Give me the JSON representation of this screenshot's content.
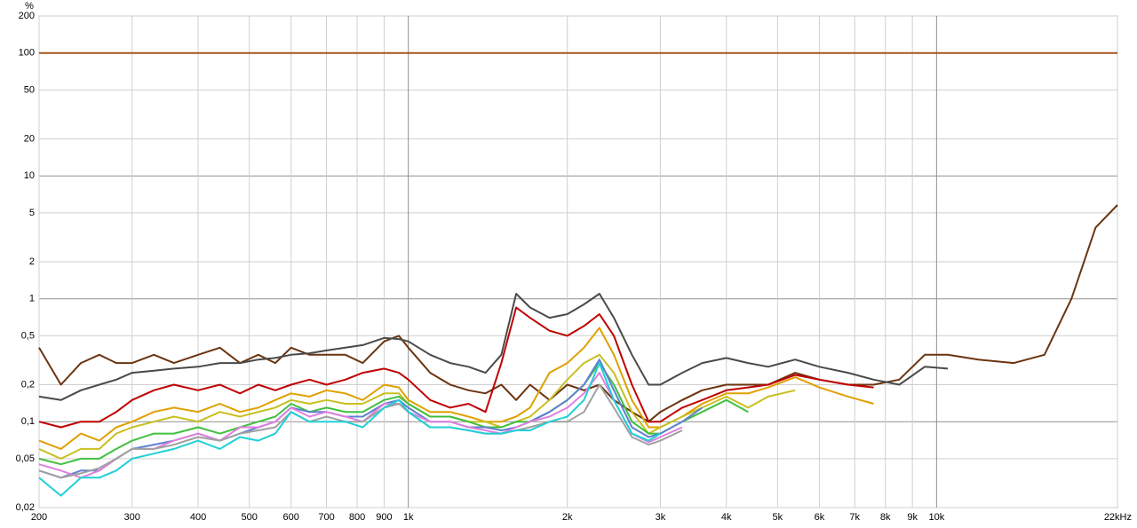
{
  "chart_data": {
    "type": "line",
    "ylabel": "%",
    "xscale": "log",
    "yscale": "log",
    "grid": true,
    "xlim": [
      200,
      22000
    ],
    "ylim": [
      0.02,
      200
    ],
    "xticks": [
      200,
      300,
      400,
      500,
      600,
      700,
      800,
      900,
      {
        "value": 1000,
        "label": "1k"
      },
      {
        "value": 2000,
        "label": "2k"
      },
      {
        "value": 3000,
        "label": "3k"
      },
      {
        "value": 4000,
        "label": "4k"
      },
      {
        "value": 5000,
        "label": "5k"
      },
      {
        "value": 6000,
        "label": "6k"
      },
      {
        "value": 7000,
        "label": "7k"
      },
      {
        "value": 8000,
        "label": "8k"
      },
      {
        "value": 9000,
        "label": "9k"
      },
      {
        "value": 10000,
        "label": "10k"
      },
      {
        "value": 22000,
        "label": "22kHz"
      }
    ],
    "yticks": [
      {
        "value": 0.02,
        "label": "0,02"
      },
      {
        "value": 0.05,
        "label": "0,05"
      },
      {
        "value": 0.1,
        "label": "0,1"
      },
      {
        "value": 0.2,
        "label": "0,2"
      },
      {
        "value": 0.5,
        "label": "0,5"
      },
      1,
      2,
      5,
      10,
      20,
      50,
      100,
      200
    ],
    "x": [
      200,
      220,
      240,
      260,
      280,
      300,
      330,
      360,
      400,
      440,
      480,
      520,
      560,
      600,
      650,
      700,
      760,
      820,
      900,
      960,
      1000,
      1100,
      1200,
      1300,
      1400,
      1500,
      1600,
      1700,
      1850,
      2000,
      2150,
      2300,
      2450,
      2650,
      2850,
      3000,
      3300,
      3600,
      4000,
      4400,
      4800,
      5400,
      6000,
      6800,
      7600,
      8500,
      9500,
      10500,
      12000,
      14000,
      16000,
      18000,
      20000,
      22000
    ],
    "series": [
      {
        "color": "#a5561e",
        "values": [
          100,
          100,
          100,
          100,
          100,
          100,
          100,
          100,
          100,
          100,
          100,
          100,
          100,
          100,
          100,
          100,
          100,
          100,
          100,
          100,
          100,
          100,
          100,
          100,
          100,
          100,
          100,
          100,
          100,
          100,
          100,
          100,
          100,
          100,
          100,
          100,
          100,
          100,
          100,
          100,
          100,
          100,
          100,
          100,
          100,
          100,
          100,
          100,
          100,
          100,
          100,
          100,
          100,
          100
        ]
      },
      {
        "color": "#6b3410",
        "values": [
          0.4,
          0.2,
          0.3,
          0.35,
          0.3,
          0.3,
          0.35,
          0.3,
          0.35,
          0.4,
          0.3,
          0.35,
          0.3,
          0.4,
          0.35,
          0.35,
          0.35,
          0.3,
          0.45,
          0.5,
          0.4,
          0.25,
          0.2,
          0.18,
          0.17,
          0.2,
          0.15,
          0.2,
          0.15,
          0.2,
          0.18,
          0.2,
          0.15,
          0.12,
          0.1,
          0.12,
          0.15,
          0.18,
          0.2,
          0.2,
          0.2,
          0.25,
          0.22,
          0.2,
          0.2,
          0.22,
          0.35,
          0.35,
          0.32,
          0.3,
          0.35,
          1.0,
          3.8,
          5.8
        ]
      },
      {
        "color": "#4a4a4a",
        "values": [
          0.16,
          0.15,
          0.18,
          0.2,
          0.22,
          0.25,
          0.26,
          0.27,
          0.28,
          0.3,
          0.3,
          0.32,
          0.33,
          0.35,
          0.36,
          0.38,
          0.4,
          0.42,
          0.48,
          0.47,
          0.45,
          0.35,
          0.3,
          0.28,
          0.25,
          0.35,
          1.1,
          0.85,
          0.7,
          0.75,
          0.9,
          1.1,
          0.7,
          0.35,
          0.2,
          0.2,
          0.25,
          0.3,
          0.33,
          0.3,
          0.28,
          0.32,
          0.28,
          0.25,
          0.22,
          0.2,
          0.28,
          0.27,
          null,
          null,
          null,
          null,
          null,
          null
        ]
      },
      {
        "color": "#c00000",
        "values": [
          0.1,
          0.09,
          0.1,
          0.1,
          0.12,
          0.15,
          0.18,
          0.2,
          0.18,
          0.2,
          0.17,
          0.2,
          0.18,
          0.2,
          0.22,
          0.2,
          0.22,
          0.25,
          0.27,
          0.25,
          0.22,
          0.15,
          0.13,
          0.14,
          0.12,
          0.3,
          0.85,
          0.7,
          0.55,
          0.5,
          0.6,
          0.75,
          0.5,
          0.2,
          0.1,
          0.1,
          0.13,
          0.15,
          0.18,
          0.19,
          0.2,
          0.24,
          0.22,
          0.2,
          0.19,
          null,
          null,
          null,
          null,
          null,
          null,
          null,
          null,
          null
        ]
      },
      {
        "color": "#e0a000",
        "values": [
          0.07,
          0.06,
          0.08,
          0.07,
          0.09,
          0.1,
          0.12,
          0.13,
          0.12,
          0.14,
          0.12,
          0.13,
          0.15,
          0.17,
          0.16,
          0.18,
          0.17,
          0.15,
          0.2,
          0.19,
          0.15,
          0.12,
          0.12,
          0.11,
          0.1,
          0.1,
          0.11,
          0.13,
          0.25,
          0.3,
          0.4,
          0.58,
          0.35,
          0.15,
          0.09,
          0.09,
          0.11,
          0.14,
          0.17,
          0.17,
          0.19,
          0.23,
          0.19,
          0.16,
          0.14,
          null,
          null,
          null,
          null,
          null,
          null,
          null,
          null,
          null
        ]
      },
      {
        "color": "#c8c020",
        "values": [
          0.06,
          0.05,
          0.06,
          0.06,
          0.08,
          0.09,
          0.1,
          0.11,
          0.1,
          0.12,
          0.11,
          0.12,
          0.13,
          0.15,
          0.14,
          0.15,
          0.14,
          0.14,
          0.17,
          0.17,
          0.14,
          0.11,
          0.11,
          0.1,
          0.1,
          0.09,
          0.1,
          0.11,
          0.15,
          0.22,
          0.3,
          0.35,
          0.25,
          0.12,
          0.08,
          0.09,
          0.11,
          0.13,
          0.16,
          0.13,
          0.16,
          0.18,
          null,
          null,
          null,
          null,
          null,
          null,
          null,
          null,
          null,
          null,
          null,
          null
        ]
      },
      {
        "color": "#40c040",
        "values": [
          0.05,
          0.045,
          0.05,
          0.05,
          0.06,
          0.07,
          0.08,
          0.08,
          0.09,
          0.08,
          0.09,
          0.1,
          0.11,
          0.14,
          0.12,
          0.13,
          0.12,
          0.12,
          0.15,
          0.16,
          0.14,
          0.11,
          0.11,
          0.1,
          0.09,
          0.09,
          0.1,
          0.1,
          0.12,
          0.15,
          0.2,
          0.3,
          0.2,
          0.1,
          0.08,
          0.08,
          0.1,
          0.12,
          0.15,
          0.12,
          null,
          null,
          null,
          null,
          null,
          null,
          null,
          null,
          null,
          null,
          null,
          null,
          null,
          null
        ]
      },
      {
        "color": "#6080d0",
        "values": [
          0.04,
          0.035,
          0.04,
          0.04,
          0.05,
          0.06,
          0.065,
          0.07,
          0.08,
          0.07,
          0.08,
          0.09,
          0.1,
          0.13,
          0.12,
          0.12,
          0.11,
          0.11,
          0.14,
          0.15,
          0.13,
          0.1,
          0.1,
          0.09,
          0.09,
          0.085,
          0.09,
          0.1,
          0.12,
          0.15,
          0.2,
          0.32,
          0.18,
          0.09,
          0.075,
          0.08,
          0.1,
          0.13,
          null,
          null,
          null,
          null,
          null,
          null,
          null,
          null,
          null,
          null,
          null,
          null,
          null,
          null,
          null,
          null
        ]
      },
      {
        "color": "#e080e0",
        "values": [
          0.045,
          0.04,
          0.035,
          0.04,
          0.05,
          0.06,
          0.06,
          0.07,
          0.08,
          0.07,
          0.09,
          0.09,
          0.1,
          0.13,
          0.11,
          0.12,
          0.11,
          0.1,
          0.14,
          0.14,
          0.12,
          0.1,
          0.1,
          0.09,
          0.085,
          0.08,
          0.09,
          0.1,
          0.11,
          0.13,
          0.17,
          0.25,
          0.15,
          0.08,
          0.068,
          0.075,
          0.09,
          null,
          null,
          null,
          null,
          null,
          null,
          null,
          null,
          null,
          null,
          null,
          null,
          null,
          null,
          null,
          null,
          null
        ]
      },
      {
        "color": "#a0a0a0",
        "values": [
          0.04,
          0.035,
          0.038,
          0.042,
          0.05,
          0.06,
          0.06,
          0.065,
          0.075,
          0.07,
          0.08,
          0.085,
          0.09,
          0.12,
          0.1,
          0.11,
          0.1,
          0.1,
          0.13,
          0.14,
          0.12,
          0.09,
          0.09,
          0.085,
          0.08,
          0.08,
          0.085,
          0.09,
          0.1,
          0.1,
          0.12,
          0.2,
          0.13,
          0.075,
          0.065,
          0.07,
          0.085,
          null,
          null,
          null,
          null,
          null,
          null,
          null,
          null,
          null,
          null,
          null,
          null,
          null,
          null,
          null,
          null,
          null
        ]
      },
      {
        "color": "#20d0d8",
        "values": [
          0.035,
          0.025,
          0.035,
          0.035,
          0.04,
          0.05,
          0.055,
          0.06,
          0.07,
          0.06,
          0.075,
          0.07,
          0.08,
          0.12,
          0.1,
          0.1,
          0.1,
          0.09,
          0.13,
          0.15,
          0.12,
          0.09,
          0.09,
          0.085,
          0.08,
          0.08,
          0.085,
          0.085,
          0.1,
          0.11,
          0.15,
          0.3,
          0.15,
          0.08,
          0.07,
          0.08,
          null,
          null,
          null,
          null,
          null,
          null,
          null,
          null,
          null,
          null,
          null,
          null,
          null,
          null,
          null,
          null,
          null,
          null
        ]
      }
    ]
  }
}
